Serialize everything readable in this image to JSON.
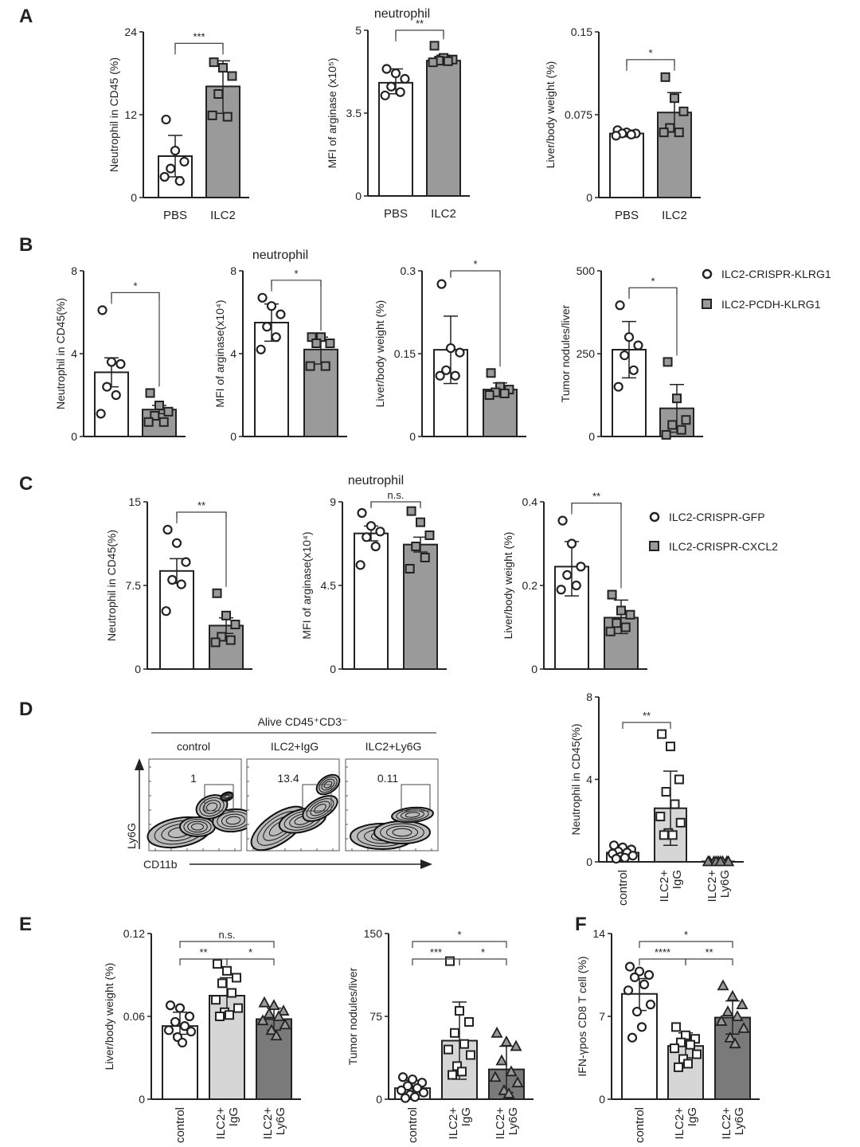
{
  "panels": {
    "A": "A",
    "B": "B",
    "C": "C",
    "D": "D",
    "E": "E",
    "F": "F"
  },
  "titles": {
    "a": "neutrophil",
    "b": "neutrophil",
    "c": "neutrophil"
  },
  "legend_b": [
    "ILC2-CRISPR-KLRG1",
    "ILC2-PCDH-KLRG1"
  ],
  "legend_c": [
    "ILC2-CRISPR-GFP",
    "ILC2-CRISPR-CXCL2"
  ],
  "flow": {
    "header": "Alive CD45⁺CD3⁻",
    "x_axis": "CD11b",
    "y_axis": "Ly6G",
    "plots": [
      {
        "label": "control",
        "value": "1"
      },
      {
        "label": "ILC2+IgG",
        "value": "13.4"
      },
      {
        "label": "ILC2+Ly6G",
        "value": "0.11"
      }
    ]
  },
  "colors": {
    "white": "#ffffff",
    "grey": "#9a9a9a",
    "light_grey": "#d6d6d6",
    "dark_grey": "#7a7a7a",
    "ink": "#222222"
  },
  "chart_data": [
    {
      "id": "A1",
      "type": "bar",
      "ylabel": "Neutrophil in CD45 (%)",
      "yticks": [
        0,
        12,
        24
      ],
      "ylim": [
        0,
        24
      ],
      "categories": [
        "PBS",
        "ILC2"
      ],
      "show_xlabels": true,
      "series": [
        {
          "name": "PBS",
          "mean": 6.0,
          "sd": [
            3.0,
            9.0
          ],
          "points": [
            11.3,
            6.8,
            5.2,
            4.2,
            2.4,
            3.0
          ]
        },
        {
          "name": "ILC2",
          "mean": 16.1,
          "sd": [
            12.2,
            19.8
          ],
          "points": [
            19.6,
            18.8,
            17.6,
            15.0,
            11.7,
            11.9
          ]
        }
      ],
      "brackets": [
        {
          "from": 0,
          "to": 1,
          "label": "***"
        }
      ]
    },
    {
      "id": "A2",
      "type": "bar",
      "ylabel": "MFI of arginase (x10⁵)",
      "yticks": [
        0,
        3.5,
        5
      ],
      "ylim": [
        0,
        5
      ],
      "categories": [
        "PBS",
        "ILC2"
      ],
      "show_xlabels": true,
      "series": [
        {
          "name": "PBS",
          "mean": 4.05,
          "sd": [
            3.85,
            4.3
          ],
          "points": [
            4.3,
            4.22,
            4.12,
            3.98,
            3.88,
            3.82
          ]
        },
        {
          "name": "ILC2",
          "mean": 4.45,
          "sd": [
            4.38,
            4.55
          ],
          "points": [
            4.72,
            4.5,
            4.47,
            4.45,
            4.44,
            4.42
          ]
        }
      ],
      "brackets": [
        {
          "from": 0,
          "to": 1,
          "label": "**"
        }
      ]
    },
    {
      "id": "A3",
      "type": "bar",
      "ylabel": "Liver/body weight (%)",
      "yticks": [
        0,
        0.075,
        0.15
      ],
      "ylim": [
        0,
        0.15
      ],
      "categories": [
        "PBS",
        "ILC2"
      ],
      "show_xlabels": true,
      "series": [
        {
          "name": "PBS",
          "mean": 0.058,
          "sd": [
            0.055,
            0.061
          ],
          "points": [
            0.061,
            0.059,
            0.058,
            0.058,
            0.057,
            0.056
          ]
        },
        {
          "name": "ILC2",
          "mean": 0.077,
          "sd": [
            0.06,
            0.095
          ],
          "points": [
            0.109,
            0.09,
            0.078,
            0.063,
            0.059,
            0.059
          ]
        }
      ],
      "brackets": [
        {
          "from": 0,
          "to": 1,
          "label": "*"
        }
      ]
    },
    {
      "id": "B1",
      "type": "bar",
      "ylabel": "Neutrophil in CD45(%)",
      "yticks": [
        0,
        4,
        8
      ],
      "ylim": [
        0,
        8
      ],
      "categories": [
        "ILC2-CRISPR-KLRG1",
        "ILC2-PCDH-KLRG1"
      ],
      "show_xlabels": false,
      "series": [
        {
          "name": "ILC2-CRISPR-KLRG1",
          "mean": 3.1,
          "sd": [
            2.4,
            3.8
          ],
          "points": [
            6.1,
            3.6,
            3.5,
            2.4,
            2.0,
            1.1
          ]
        },
        {
          "name": "ILC2-PCDH-KLRG1",
          "mean": 1.3,
          "sd": [
            1.1,
            1.5
          ],
          "points": [
            2.1,
            1.5,
            1.2,
            1.0,
            0.7,
            0.7
          ]
        }
      ],
      "brackets": [
        {
          "from": 0,
          "to": 1,
          "label": "*"
        }
      ]
    },
    {
      "id": "B2",
      "type": "bar",
      "ylabel": "MFI of arginase(x10⁴)",
      "yticks": [
        0,
        4,
        8
      ],
      "ylim": [
        0,
        8
      ],
      "categories": [
        "ILC2-CRISPR-KLRG1",
        "ILC2-PCDH-KLRG1"
      ],
      "show_xlabels": false,
      "series": [
        {
          "name": "ILC2-CRISPR-KLRG1",
          "mean": 5.5,
          "sd": [
            4.6,
            6.4
          ],
          "points": [
            6.7,
            6.3,
            5.9,
            5.3,
            4.8,
            4.2
          ]
        },
        {
          "name": "ILC2-PCDH-KLRG1",
          "mean": 4.2,
          "sd": [
            3.5,
            4.8
          ],
          "points": [
            4.8,
            4.8,
            4.5,
            4.5,
            3.4,
            3.4
          ]
        }
      ],
      "brackets": [
        {
          "from": 0,
          "to": 1,
          "label": "*"
        }
      ]
    },
    {
      "id": "B3",
      "type": "bar",
      "ylabel": "Liver/body weight (%)",
      "yticks": [
        0,
        0.15,
        0.3
      ],
      "ylim": [
        0,
        0.3
      ],
      "categories": [
        "ILC2-CRISPR-KLRG1",
        "ILC2-PCDH-KLRG1"
      ],
      "show_xlabels": false,
      "series": [
        {
          "name": "ILC2-CRISPR-KLRG1",
          "mean": 0.157,
          "sd": [
            0.096,
            0.218
          ],
          "points": [
            0.276,
            0.16,
            0.152,
            0.12,
            0.11,
            0.11
          ]
        },
        {
          "name": "ILC2-PCDH-KLRG1",
          "mean": 0.085,
          "sd": [
            0.073,
            0.097
          ],
          "points": [
            0.115,
            0.09,
            0.085,
            0.08,
            0.078,
            0.075
          ]
        }
      ],
      "brackets": [
        {
          "from": 0,
          "to": 1,
          "label": "*"
        }
      ]
    },
    {
      "id": "B4",
      "type": "bar",
      "ylabel": "Tumor nodules/liver",
      "yticks": [
        0,
        250,
        500
      ],
      "ylim": [
        0,
        500
      ],
      "categories": [
        "ILC2-CRISPR-KLRG1",
        "ILC2-PCDH-KLRG1"
      ],
      "show_xlabels": false,
      "series": [
        {
          "name": "ILC2-CRISPR-KLRG1",
          "mean": 262,
          "sd": [
            177,
            347
          ],
          "points": [
            396,
            300,
            275,
            245,
            200,
            150
          ]
        },
        {
          "name": "ILC2-PCDH-KLRG1",
          "mean": 85,
          "sd": [
            13,
            157
          ],
          "points": [
            225,
            115,
            50,
            35,
            20,
            5
          ]
        }
      ],
      "brackets": [
        {
          "from": 0,
          "to": 1,
          "label": "*"
        }
      ]
    },
    {
      "id": "C1",
      "type": "bar",
      "ylabel": "Neutrophil in CD45(%)",
      "yticks": [
        0,
        7.5,
        15
      ],
      "ylim": [
        0,
        15
      ],
      "categories": [
        "ILC2-CRISPR-GFP",
        "ILC2-CRISPR-CXCL2"
      ],
      "show_xlabels": false,
      "series": [
        {
          "name": "ILC2-CRISPR-GFP",
          "mean": 8.8,
          "sd": [
            7.7,
            9.9
          ],
          "points": [
            12.5,
            11.3,
            9.6,
            8.0,
            7.6,
            5.2
          ]
        },
        {
          "name": "ILC2-CRISPR-CXCL2",
          "mean": 3.9,
          "sd": [
            3.2,
            4.6
          ],
          "points": [
            6.8,
            4.8,
            4.0,
            2.9,
            2.6,
            2.4
          ]
        }
      ],
      "brackets": [
        {
          "from": 0,
          "to": 1,
          "label": "**"
        }
      ]
    },
    {
      "id": "C2",
      "type": "bar",
      "ylabel": "MFI of arginase(x10⁴)",
      "yticks": [
        0,
        4.5,
        9
      ],
      "ylim": [
        0,
        9
      ],
      "categories": [
        "ILC2-CRISPR-GFP",
        "ILC2-CRISPR-CXCL2"
      ],
      "show_xlabels": false,
      "series": [
        {
          "name": "ILC2-CRISPR-GFP",
          "mean": 7.3,
          "sd": [
            6.9,
            7.7
          ],
          "points": [
            8.4,
            7.7,
            7.4,
            7.1,
            6.6,
            5.6
          ]
        },
        {
          "name": "ILC2-CRISPR-CXCL2",
          "mean": 6.7,
          "sd": [
            6.3,
            7.1
          ],
          "points": [
            8.5,
            7.9,
            7.2,
            6.6,
            6.0,
            5.4
          ]
        }
      ],
      "brackets": [
        {
          "from": 0,
          "to": 1,
          "label": "n.s."
        }
      ]
    },
    {
      "id": "C3",
      "type": "bar",
      "ylabel": "Liver/body weight (%)",
      "yticks": [
        0,
        0.2,
        0.4
      ],
      "ylim": [
        0,
        0.4
      ],
      "categories": [
        "ILC2-CRISPR-GFP",
        "ILC2-CRISPR-CXCL2"
      ],
      "show_xlabels": false,
      "series": [
        {
          "name": "ILC2-CRISPR-GFP",
          "mean": 0.245,
          "sd": [
            0.175,
            0.305
          ],
          "points": [
            0.355,
            0.3,
            0.245,
            0.225,
            0.2,
            0.19
          ]
        },
        {
          "name": "ILC2-CRISPR-CXCL2",
          "mean": 0.123,
          "sd": [
            0.085,
            0.165
          ],
          "points": [
            0.178,
            0.14,
            0.13,
            0.11,
            0.1,
            0.09
          ]
        }
      ],
      "brackets": [
        {
          "from": 0,
          "to": 1,
          "label": "**"
        }
      ]
    },
    {
      "id": "D1",
      "type": "bar",
      "ylabel": "Neutrophil in CD45(%)",
      "yticks": [
        0,
        4,
        8
      ],
      "ylim": [
        0,
        8
      ],
      "categories": [
        [
          "control"
        ],
        [
          "ILC2+",
          "IgG"
        ],
        [
          "ILC2+",
          "Ly6G"
        ]
      ],
      "show_xlabels": true,
      "series": [
        {
          "name": "control",
          "mean": 0.45,
          "sd": [
            0.3,
            0.6
          ],
          "points": [
            0.8,
            0.7,
            0.6,
            0.5,
            0.45,
            0.4,
            0.3,
            0.25,
            0.2,
            0.15
          ]
        },
        {
          "name": "ILC2+IgG",
          "mean": 2.6,
          "sd": [
            0.8,
            4.4
          ],
          "points": [
            6.2,
            5.6,
            4.0,
            3.4,
            2.8,
            2.2,
            1.9,
            1.4,
            1.3,
            1.3
          ]
        },
        {
          "name": "ILC2+Ly6G",
          "mean": 0.02,
          "sd": [
            0.0,
            0.04
          ],
          "points": [
            0.02,
            0.02,
            0.02,
            0.02,
            0.02,
            0.02,
            0.02,
            0.02,
            0.02
          ]
        }
      ],
      "brackets": [
        {
          "from": 0,
          "to": 1,
          "label": "**"
        }
      ]
    },
    {
      "id": "E1",
      "type": "bar",
      "ylabel": "Liver/body weight (%)",
      "yticks": [
        0,
        0.06,
        0.12
      ],
      "ylim": [
        0,
        0.12
      ],
      "categories": [
        [
          "control"
        ],
        [
          "ILC2+",
          "IgG"
        ],
        [
          "ILC2+",
          "Ly6G"
        ]
      ],
      "show_xlabels": true,
      "series": [
        {
          "name": "control",
          "mean": 0.053,
          "sd": [
            0.047,
            0.063
          ],
          "points": [
            0.068,
            0.066,
            0.06,
            0.056,
            0.053,
            0.05,
            0.049,
            0.045,
            0.041
          ]
        },
        {
          "name": "ILC2+IgG",
          "mean": 0.075,
          "sd": [
            0.062,
            0.088
          ],
          "points": [
            0.098,
            0.093,
            0.088,
            0.084,
            0.077,
            0.072,
            0.066,
            0.063,
            0.061,
            0.06
          ]
        },
        {
          "name": "ILC2+Ly6G",
          "mean": 0.058,
          "sd": [
            0.05,
            0.066
          ],
          "points": [
            0.07,
            0.068,
            0.064,
            0.062,
            0.06,
            0.057,
            0.054,
            0.05,
            0.046
          ]
        }
      ],
      "brackets": [
        {
          "from": 0,
          "to": 1,
          "label": "**"
        },
        {
          "from": 1,
          "to": 2,
          "label": "*"
        },
        {
          "from": 0,
          "to": 2,
          "label": "n.s."
        }
      ]
    },
    {
      "id": "E2",
      "type": "bar",
      "ylabel": "Tumor nodules/liver",
      "yticks": [
        0,
        75,
        150
      ],
      "ylim": [
        0,
        150
      ],
      "categories": [
        [
          "control"
        ],
        [
          "ILC2+",
          "IgG"
        ],
        [
          "ILC2+",
          "Ly6G"
        ]
      ],
      "show_xlabels": true,
      "series": [
        {
          "name": "control",
          "mean": 10,
          "sd": [
            3,
            17
          ],
          "points": [
            20,
            18,
            15,
            12,
            10,
            8,
            6,
            4,
            2,
            1
          ]
        },
        {
          "name": "ILC2+IgG",
          "mean": 53,
          "sd": [
            18,
            88
          ],
          "points": [
            125,
            80,
            70,
            60,
            50,
            45,
            40,
            30,
            25,
            22
          ]
        },
        {
          "name": "ILC2+Ly6G",
          "mean": 27,
          "sd": [
            6,
            48
          ],
          "points": [
            60,
            52,
            48,
            35,
            25,
            20,
            15,
            8,
            5
          ]
        }
      ],
      "brackets": [
        {
          "from": 0,
          "to": 1,
          "label": "***"
        },
        {
          "from": 1,
          "to": 2,
          "label": "*"
        },
        {
          "from": 0,
          "to": 2,
          "label": "*"
        }
      ]
    },
    {
      "id": "F1",
      "type": "bar",
      "ylabel": "IFN-γpos CD8 T cell (%)",
      "yticks": [
        0,
        7,
        14
      ],
      "ylim": [
        0,
        14
      ],
      "categories": [
        [
          "control"
        ],
        [
          "ILC2+",
          "IgG"
        ],
        [
          "ILC2+",
          "Ly6G"
        ]
      ],
      "show_xlabels": true,
      "series": [
        {
          "name": "control",
          "mean": 8.9,
          "sd": [
            7.5,
            10.2
          ],
          "points": [
            11.2,
            10.8,
            10.5,
            10.3,
            9.7,
            9.2,
            8.0,
            7.4,
            6.1,
            5.2
          ]
        },
        {
          "name": "ILC2+IgG",
          "mean": 4.5,
          "sd": [
            3.5,
            5.6
          ],
          "points": [
            6.1,
            5.4,
            5.1,
            4.8,
            4.6,
            4.3,
            3.8,
            3.4,
            3.0,
            2.7
          ]
        },
        {
          "name": "ILC2+Ly6G",
          "mean": 6.9,
          "sd": [
            5.5,
            8.3
          ],
          "points": [
            9.6,
            8.7,
            8.0,
            7.4,
            7.0,
            6.6,
            6.0,
            5.2,
            4.7
          ]
        }
      ],
      "brackets": [
        {
          "from": 0,
          "to": 1,
          "label": "****"
        },
        {
          "from": 1,
          "to": 2,
          "label": "**"
        },
        {
          "from": 0,
          "to": 2,
          "label": "*"
        }
      ]
    }
  ]
}
